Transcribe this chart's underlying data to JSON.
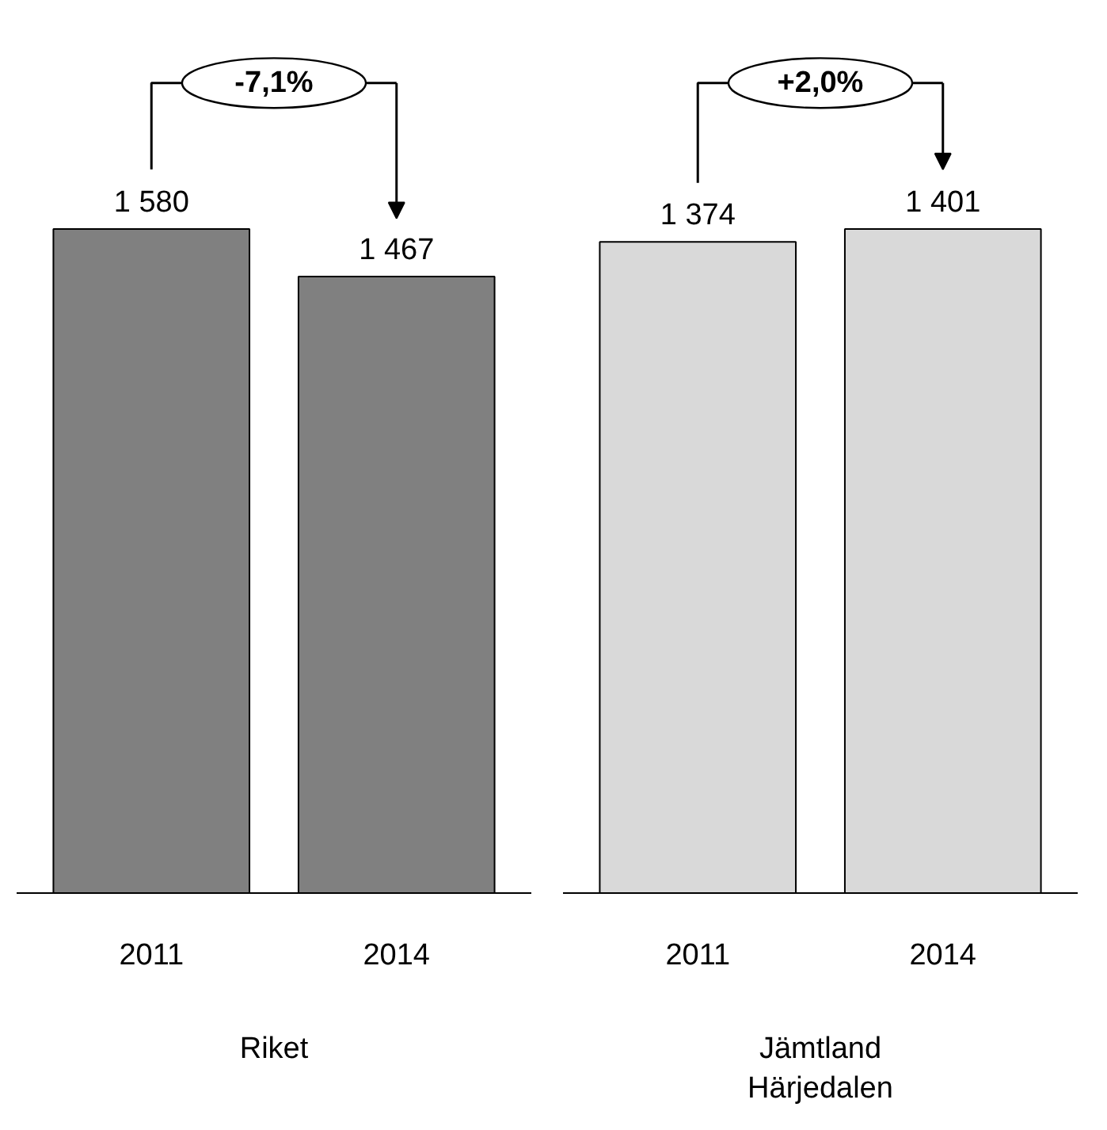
{
  "chart_data": [
    {
      "type": "bar",
      "xlabel": "Riket",
      "categories": [
        "2011",
        "2014"
      ],
      "values": [
        1580,
        1467
      ],
      "color": "#808080",
      "value_labels": [
        "1 580",
        "1 467"
      ],
      "annotations": [
        "-7,1%"
      ]
    },
    {
      "type": "bar",
      "xlabel": "Jämtland\nHärjedalen",
      "categories": [
        "2011",
        "2014"
      ],
      "values": [
        1374,
        1401
      ],
      "color": "#d9d9d9",
      "value_labels": [
        "1 374",
        "1 401"
      ],
      "annotations": [
        "+2,0%"
      ]
    }
  ]
}
